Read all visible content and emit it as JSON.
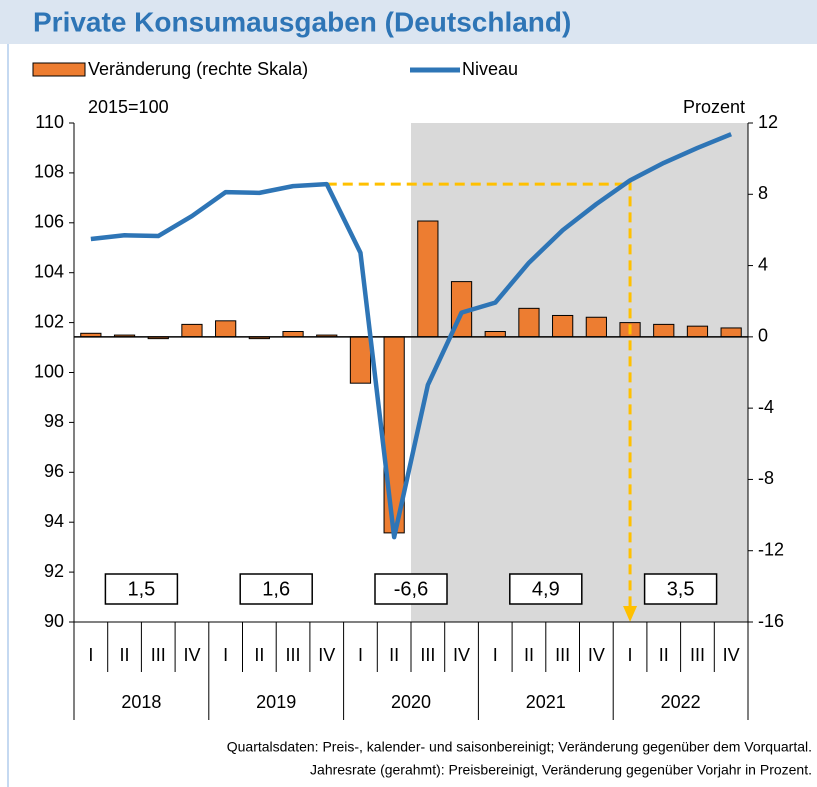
{
  "chart_data": {
    "type": "bar-line",
    "title": "Private Konsumausgaben (Deutschland)",
    "left_axis_note": "2015=100",
    "right_axis_note": "Prozent",
    "categories": [
      "I",
      "II",
      "III",
      "IV",
      "I",
      "II",
      "III",
      "IV",
      "I",
      "II",
      "III",
      "IV",
      "I",
      "II",
      "III",
      "IV",
      "I",
      "II",
      "III",
      "IV"
    ],
    "years": [
      "2018",
      "2019",
      "2020",
      "2021",
      "2022"
    ],
    "series": [
      {
        "name": "Veränderung (rechte Skala)",
        "kind": "bar",
        "axis": "y2",
        "color": "#ed7d31",
        "values": [
          0.2,
          0.1,
          -0.1,
          0.7,
          0.9,
          -0.1,
          0.3,
          0.1,
          -2.6,
          -11.0,
          6.5,
          3.1,
          0.3,
          1.6,
          1.2,
          1.1,
          0.8,
          0.7,
          0.6,
          0.5
        ]
      },
      {
        "name": "Niveau",
        "kind": "line",
        "color": "#2e75b6",
        "values": [
          105.35,
          105.5,
          105.47,
          106.27,
          107.23,
          107.2,
          107.47,
          107.55,
          104.8,
          93.4,
          99.5,
          102.4,
          102.8,
          104.4,
          105.7,
          106.75,
          107.7,
          108.4,
          109.0,
          109.55
        ]
      }
    ],
    "annual_rates": {
      "values": [
        1.5,
        1.6,
        -6.6,
        4.9,
        3.5
      ],
      "value_labels": [
        "1,5",
        "1,6",
        "-6,6",
        "4,9",
        "3,5"
      ]
    },
    "shaded_from": 10,
    "reference_line": {
      "from_index": 7,
      "to_index": 16,
      "color": "#ffc000"
    },
    "ylim": [
      90,
      110
    ],
    "yticks": [
      90,
      92,
      94,
      96,
      98,
      100,
      102,
      104,
      106,
      108,
      110
    ],
    "y2lim": [
      -16,
      12
    ],
    "y2ticks": [
      -16,
      -12,
      -8,
      -4,
      0,
      4,
      8,
      12
    ],
    "legend": "top-left",
    "footnote": [
      "Quartalsdaten: Preis-, kalender- und saisonbereinigt; Veränderung gegenüber dem Vorquartal.",
      "Jahresrate (gerahmt): Preisbereinigt, Veränderung gegenüber Vorjahr in Prozent."
    ]
  }
}
